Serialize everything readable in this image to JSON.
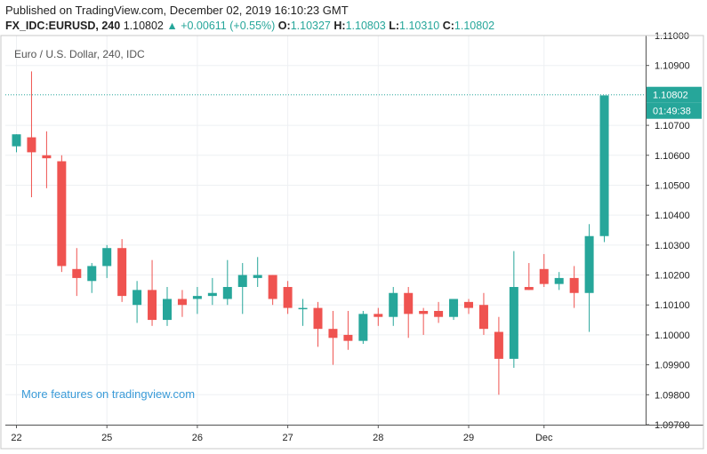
{
  "header": {
    "published": "Published on TradingView.com, December 02, 2019 16:10:23 GMT",
    "symbol": "FX_IDC:EURUSD, 240",
    "last": "1.10802",
    "change": "▲ +0.00611 (+0.55%)",
    "o_label": "O:",
    "o_value": "1.10327",
    "h_label": "H:",
    "h_value": "1.10803",
    "l_label": "L:",
    "l_value": "1.10310",
    "c_label": "C:",
    "c_value": "1.10802"
  },
  "chart_data": {
    "type": "candlestick",
    "title": "Euro / U.S. Dollar, 240, IDC",
    "watermark": "More features on tradingview.com",
    "ylim": [
      1.097,
      1.11
    ],
    "y_ticks": [
      "1.11000",
      "1.10900",
      "1.10700",
      "1.10600",
      "1.10500",
      "1.10400",
      "1.10300",
      "1.10200",
      "1.10100",
      "1.10000",
      "1.09900",
      "1.09800",
      "1.09700"
    ],
    "x_ticks": [
      {
        "label": "22",
        "index": 0
      },
      {
        "label": "25",
        "index": 6
      },
      {
        "label": "26",
        "index": 12
      },
      {
        "label": "27",
        "index": 18
      },
      {
        "label": "28",
        "index": 24
      },
      {
        "label": "29",
        "index": 30
      },
      {
        "label": "Dec",
        "index": 35
      }
    ],
    "price_label": "1.10802",
    "countdown_label": "01:49:38",
    "up_color": "#26a69a",
    "down_color": "#ef5350",
    "candles": [
      {
        "o": 1.1063,
        "h": 1.1067,
        "l": 1.1061,
        "c": 1.1067
      },
      {
        "o": 1.1066,
        "h": 1.1088,
        "l": 1.1046,
        "c": 1.1061
      },
      {
        "o": 1.106,
        "h": 1.1068,
        "l": 1.1049,
        "c": 1.1059
      },
      {
        "o": 1.1058,
        "h": 1.106,
        "l": 1.1021,
        "c": 1.1023
      },
      {
        "o": 1.1022,
        "h": 1.1029,
        "l": 1.1013,
        "c": 1.1019
      },
      {
        "o": 1.1018,
        "h": 1.1024,
        "l": 1.1014,
        "c": 1.1023
      },
      {
        "o": 1.1023,
        "h": 1.103,
        "l": 1.1019,
        "c": 1.1029
      },
      {
        "o": 1.1029,
        "h": 1.1032,
        "l": 1.1011,
        "c": 1.1013
      },
      {
        "o": 1.101,
        "h": 1.1018,
        "l": 1.1004,
        "c": 1.1015
      },
      {
        "o": 1.1015,
        "h": 1.1025,
        "l": 1.1003,
        "c": 1.1005
      },
      {
        "o": 1.1005,
        "h": 1.1016,
        "l": 1.1003,
        "c": 1.1012
      },
      {
        "o": 1.1012,
        "h": 1.1015,
        "l": 1.1006,
        "c": 1.101
      },
      {
        "o": 1.1012,
        "h": 1.1016,
        "l": 1.1007,
        "c": 1.1013
      },
      {
        "o": 1.1013,
        "h": 1.1019,
        "l": 1.101,
        "c": 1.1014
      },
      {
        "o": 1.1012,
        "h": 1.1025,
        "l": 1.101,
        "c": 1.1016
      },
      {
        "o": 1.1016,
        "h": 1.1024,
        "l": 1.1007,
        "c": 1.102
      },
      {
        "o": 1.1019,
        "h": 1.1026,
        "l": 1.1016,
        "c": 1.102
      },
      {
        "o": 1.102,
        "h": 1.102,
        "l": 1.101,
        "c": 1.1012
      },
      {
        "o": 1.1016,
        "h": 1.1018,
        "l": 1.1007,
        "c": 1.1009
      },
      {
        "o": 1.1009,
        "h": 1.1012,
        "l": 1.1003,
        "c": 1.1009
      },
      {
        "o": 1.1009,
        "h": 1.1011,
        "l": 1.0996,
        "c": 1.1002
      },
      {
        "o": 1.1002,
        "h": 1.1008,
        "l": 1.099,
        "c": 1.0999
      },
      {
        "o": 1.1,
        "h": 1.1008,
        "l": 1.0995,
        "c": 1.0998
      },
      {
        "o": 1.0998,
        "h": 1.1008,
        "l": 1.0997,
        "c": 1.1007
      },
      {
        "o": 1.1007,
        "h": 1.1009,
        "l": 1.1003,
        "c": 1.1006
      },
      {
        "o": 1.1006,
        "h": 1.1016,
        "l": 1.1003,
        "c": 1.1014
      },
      {
        "o": 1.1014,
        "h": 1.1016,
        "l": 1.0999,
        "c": 1.1007
      },
      {
        "o": 1.1008,
        "h": 1.1009,
        "l": 1.1,
        "c": 1.1007
      },
      {
        "o": 1.1008,
        "h": 1.1011,
        "l": 1.1004,
        "c": 1.1006
      },
      {
        "o": 1.1006,
        "h": 1.1012,
        "l": 1.1005,
        "c": 1.1012
      },
      {
        "o": 1.1011,
        "h": 1.1012,
        "l": 1.1007,
        "c": 1.1009
      },
      {
        "o": 1.101,
        "h": 1.1014,
        "l": 1.1,
        "c": 1.1002
      },
      {
        "o": 1.1001,
        "h": 1.1006,
        "l": 1.098,
        "c": 1.0992
      },
      {
        "o": 1.0992,
        "h": 1.1028,
        "l": 1.0989,
        "c": 1.1016
      },
      {
        "o": 1.1016,
        "h": 1.1024,
        "l": 1.1015,
        "c": 1.1015
      },
      {
        "o": 1.1022,
        "h": 1.1027,
        "l": 1.1016,
        "c": 1.1017
      },
      {
        "o": 1.1017,
        "h": 1.1021,
        "l": 1.1015,
        "c": 1.1019
      },
      {
        "o": 1.1019,
        "h": 1.1023,
        "l": 1.1009,
        "c": 1.1014
      },
      {
        "o": 1.1014,
        "h": 1.1037,
        "l": 1.1001,
        "c": 1.1033
      },
      {
        "o": 1.1033,
        "h": 1.108,
        "l": 1.1031,
        "c": 1.108
      }
    ]
  }
}
